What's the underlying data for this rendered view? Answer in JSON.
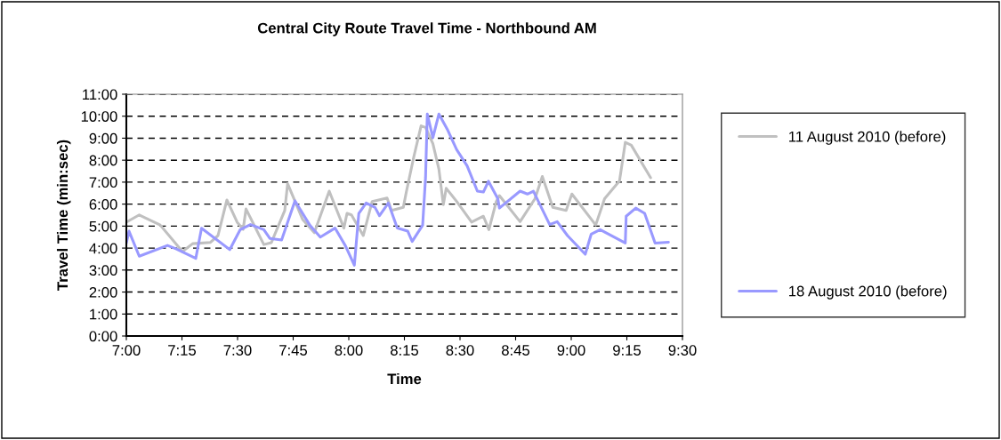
{
  "chart_data": {
    "type": "line",
    "title": "Central City Route Travel Time - Northbound AM",
    "xlabel": "Time",
    "ylabel": "Travel Time (min:sec)",
    "xlim": [
      7,
      9.5
    ],
    "xticks": [
      {
        "value": 7,
        "label": "7:00"
      },
      {
        "value": 7.25,
        "label": "7:15"
      },
      {
        "value": 7.5,
        "label": "7:30"
      },
      {
        "value": 7.75,
        "label": "7:45"
      },
      {
        "value": 8,
        "label": "8:00"
      },
      {
        "value": 8.25,
        "label": "8:15"
      },
      {
        "value": 8.5,
        "label": "8:30"
      },
      {
        "value": 8.75,
        "label": "8:45"
      },
      {
        "value": 9,
        "label": "9:00"
      },
      {
        "value": 9.25,
        "label": "9:15"
      },
      {
        "value": 9.5,
        "label": "9:30"
      }
    ],
    "ylim": [
      0,
      11
    ],
    "yticks": [
      {
        "value": 0,
        "label": "0:00"
      },
      {
        "value": 1,
        "label": "1:00"
      },
      {
        "value": 2,
        "label": "2:00"
      },
      {
        "value": 3,
        "label": "3:00"
      },
      {
        "value": 4,
        "label": "4:00"
      },
      {
        "value": 5,
        "label": "5:00"
      },
      {
        "value": 6,
        "label": "6:00"
      },
      {
        "value": 7,
        "label": "7:00"
      },
      {
        "value": 8,
        "label": "8:00"
      },
      {
        "value": 9,
        "label": "9:00"
      },
      {
        "value": 10,
        "label": "10:00"
      },
      {
        "value": 11,
        "label": "11:00"
      }
    ],
    "grid": "y",
    "legend": "right",
    "marker": "none",
    "line_style": "solid",
    "series": [
      {
        "name": "11 August 2010 (before)",
        "color": "#c0c0c0",
        "x": [
          7.0,
          7.058,
          7.152,
          7.252,
          7.298,
          7.378,
          7.412,
          7.452,
          7.498,
          7.525,
          7.538,
          7.618,
          7.652,
          7.712,
          7.725,
          7.792,
          7.845,
          7.912,
          7.978,
          7.992,
          8.012,
          8.065,
          8.105,
          8.172,
          8.192,
          8.245,
          8.258,
          8.292,
          8.325,
          8.345,
          8.378,
          8.405,
          8.425,
          8.438,
          8.485,
          8.552,
          8.605,
          8.63,
          8.663,
          8.677,
          8.77,
          8.837,
          8.87,
          8.917,
          8.977,
          9.003,
          9.11,
          9.15,
          9.217,
          9.243,
          9.27,
          9.357
        ],
        "values": [
          5.18,
          5.51,
          5.05,
          3.84,
          4.2,
          4.26,
          4.57,
          6.19,
          5.18,
          4.85,
          5.78,
          4.16,
          4.25,
          5.71,
          6.93,
          5.31,
          4.7,
          6.59,
          4.91,
          5.58,
          5.51,
          4.57,
          6.12,
          6.28,
          5.71,
          5.85,
          6.52,
          8.14,
          9.56,
          9.49,
          8.75,
          7.6,
          5.98,
          6.72,
          6.12,
          5.18,
          5.45,
          4.84,
          6.12,
          6.39,
          5.2,
          6.25,
          7.26,
          5.85,
          5.71,
          6.46,
          5.05,
          6.25,
          7.06,
          8.81,
          8.68,
          7.2
        ]
      },
      {
        "name": "18 August 2010 (before)",
        "color": "#9999ff",
        "x": [
          7.0,
          7.012,
          7.058,
          7.185,
          7.225,
          7.312,
          7.338,
          7.465,
          7.512,
          7.558,
          7.618,
          7.645,
          7.698,
          7.758,
          7.825,
          7.872,
          7.938,
          7.985,
          8.025,
          8.045,
          8.078,
          8.118,
          8.138,
          8.178,
          8.218,
          8.265,
          8.285,
          8.332,
          8.345,
          8.353,
          8.378,
          8.405,
          8.445,
          8.485,
          8.532,
          8.578,
          8.605,
          8.628,
          8.67,
          8.677,
          8.77,
          8.803,
          8.83,
          8.903,
          8.937,
          8.983,
          9.063,
          9.09,
          9.13,
          9.243,
          9.247,
          9.29,
          9.33,
          9.377,
          9.437
        ],
        "values": [
          4.23,
          4.77,
          3.63,
          4.12,
          3.96,
          3.53,
          4.9,
          3.93,
          4.84,
          5.07,
          4.84,
          4.44,
          4.37,
          6.15,
          5.04,
          4.5,
          4.91,
          4.1,
          3.22,
          5.58,
          6.05,
          5.85,
          5.47,
          6.05,
          4.91,
          4.77,
          4.3,
          5.04,
          7.2,
          10.1,
          9.02,
          10.1,
          9.36,
          8.48,
          7.74,
          6.59,
          6.55,
          7.04,
          6.25,
          5.82,
          6.59,
          6.46,
          6.59,
          5.07,
          5.2,
          4.57,
          3.72,
          4.64,
          4.84,
          4.23,
          5.45,
          5.82,
          5.58,
          4.23,
          4.27
        ]
      }
    ]
  }
}
